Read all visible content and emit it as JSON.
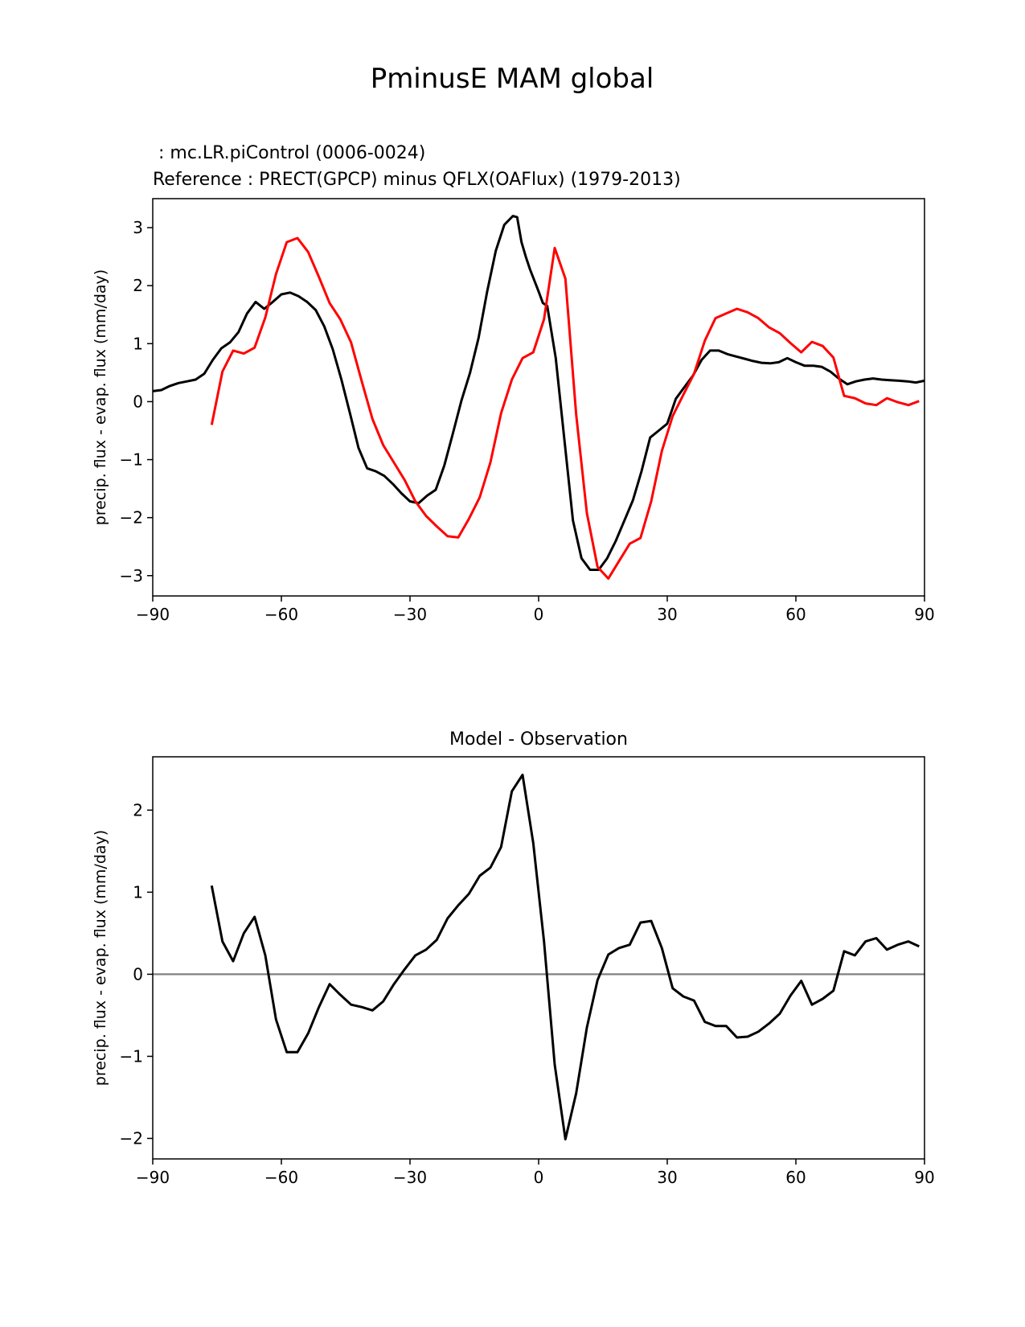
{
  "figure_title": "PminusE MAM global",
  "colors": {
    "model": "#000000",
    "reference": "#ff0000",
    "zero_line": "#808080"
  },
  "chart_data": [
    {
      "type": "line",
      "title_model": " : mc.LR.piControl (0006-0024)",
      "title_reference": "Reference : PRECT(GPCP) minus QFLX(OAFlux) (1979-2013)",
      "xlabel": "",
      "ylabel": "precip. flux - evap. flux (mm/day)",
      "xlim": [
        -90,
        90
      ],
      "ylim": [
        -3.35,
        3.5
      ],
      "xticks": [
        -90,
        -60,
        -30,
        0,
        30,
        60,
        90
      ],
      "xtick_labels": [
        "−90",
        "−60",
        "−30",
        "0",
        "30",
        "60",
        "90"
      ],
      "yticks": [
        -3,
        -2,
        -1,
        0,
        1,
        2,
        3
      ],
      "ytick_labels": [
        "−3",
        "−2",
        "−1",
        "0",
        "1",
        "2",
        "3"
      ],
      "series": [
        {
          "name": "mc.LR.piControl (0006-0024)",
          "color": "#000000",
          "x": [
            -90,
            -88,
            -86,
            -84,
            -82,
            -80,
            -78,
            -76,
            -74,
            -72,
            -70,
            -68,
            -66,
            -64,
            -62,
            -60,
            -58,
            -56,
            -54,
            -52,
            -50,
            -48,
            -46,
            -44,
            -42,
            -40,
            -38,
            -36,
            -34,
            -32,
            -30,
            -28,
            -26,
            -24,
            -22,
            -20,
            -18,
            -16,
            -14,
            -12,
            -10,
            -8,
            -6,
            -5,
            -4,
            -3,
            -2,
            0,
            1,
            2,
            4,
            6,
            8,
            10,
            12,
            14,
            16,
            18,
            20,
            22,
            24,
            26,
            28,
            30,
            32,
            34,
            36,
            38,
            40,
            42,
            44,
            46,
            48,
            50,
            52,
            54,
            56,
            58,
            60,
            62,
            64,
            66,
            68,
            70,
            72,
            74,
            76,
            78,
            80,
            82,
            84,
            86,
            88,
            90
          ],
          "values": [
            0.18,
            0.2,
            0.27,
            0.32,
            0.35,
            0.38,
            0.48,
            0.72,
            0.92,
            1.02,
            1.2,
            1.52,
            1.72,
            1.6,
            1.72,
            1.85,
            1.88,
            1.82,
            1.72,
            1.58,
            1.3,
            0.9,
            0.38,
            -0.2,
            -0.8,
            -1.15,
            -1.2,
            -1.28,
            -1.42,
            -1.58,
            -1.72,
            -1.75,
            -1.62,
            -1.52,
            -1.1,
            -0.55,
            0.02,
            0.5,
            1.1,
            1.9,
            2.6,
            3.05,
            3.2,
            3.18,
            2.75,
            2.5,
            2.28,
            1.9,
            1.7,
            1.65,
            0.75,
            -0.65,
            -2.05,
            -2.7,
            -2.9,
            -2.9,
            -2.7,
            -2.4,
            -2.05,
            -1.7,
            -1.2,
            -0.62,
            -0.5,
            -0.38,
            0.05,
            0.25,
            0.45,
            0.72,
            0.88,
            0.88,
            0.82,
            0.78,
            0.74,
            0.7,
            0.67,
            0.66,
            0.68,
            0.75,
            0.68,
            0.62,
            0.62,
            0.6,
            0.52,
            0.4,
            0.3,
            0.35,
            0.38,
            0.4,
            0.38,
            0.37,
            0.36,
            0.35,
            0.33,
            0.36
          ]
        },
        {
          "name": "Reference : PRECT(GPCP) minus QFLX(OAFlux) (1979-2013)",
          "color": "#ff0000",
          "x": [
            -76.25,
            -73.75,
            -71.25,
            -68.75,
            -66.25,
            -63.75,
            -61.25,
            -58.75,
            -56.25,
            -53.75,
            -51.25,
            -48.75,
            -46.25,
            -43.75,
            -41.25,
            -38.75,
            -36.25,
            -33.75,
            -31.25,
            -28.75,
            -26.25,
            -23.75,
            -21.25,
            -18.75,
            -16.25,
            -13.75,
            -11.25,
            -8.75,
            -6.25,
            -3.75,
            -1.25,
            1.25,
            3.75,
            6.25,
            8.75,
            11.25,
            13.75,
            16.25,
            18.75,
            21.25,
            23.75,
            26.25,
            28.75,
            31.25,
            33.75,
            36.25,
            38.75,
            41.25,
            43.75,
            46.25,
            48.75,
            51.25,
            53.75,
            56.25,
            58.75,
            61.25,
            63.75,
            66.25,
            68.75,
            71.25,
            73.75,
            76.25,
            78.75,
            81.25,
            83.75,
            86.25,
            88.75
          ],
          "values": [
            -0.4,
            0.52,
            0.88,
            0.83,
            0.93,
            1.45,
            2.2,
            2.75,
            2.82,
            2.58,
            2.15,
            1.7,
            1.42,
            1.02,
            0.35,
            -0.3,
            -0.75,
            -1.05,
            -1.35,
            -1.72,
            -1.97,
            -2.15,
            -2.32,
            -2.34,
            -2.02,
            -1.65,
            -1.05,
            -0.2,
            0.38,
            0.75,
            0.85,
            1.42,
            2.65,
            2.12,
            -0.22,
            -1.92,
            -2.85,
            -3.05,
            -2.75,
            -2.45,
            -2.35,
            -1.72,
            -0.85,
            -0.25,
            0.12,
            0.48,
            1.05,
            1.44,
            1.52,
            1.6,
            1.54,
            1.44,
            1.28,
            1.18,
            1.01,
            0.85,
            1.03,
            0.96,
            0.76,
            0.1,
            0.06,
            -0.03,
            -0.06,
            0.06,
            -0.01,
            -0.06,
            0.01
          ]
        }
      ]
    },
    {
      "type": "line",
      "title": "Model - Observation",
      "xlabel": "",
      "ylabel": "precip. flux - evap. flux (mm/day)",
      "xlim": [
        -90,
        90
      ],
      "ylim": [
        -2.25,
        2.65
      ],
      "xticks": [
        -90,
        -60,
        -30,
        0,
        30,
        60,
        90
      ],
      "xtick_labels": [
        "−90",
        "−60",
        "−30",
        "0",
        "30",
        "60",
        "90"
      ],
      "yticks": [
        -2,
        -1,
        0,
        1,
        2
      ],
      "ytick_labels": [
        "−2",
        "−1",
        "0",
        "1",
        "2"
      ],
      "reference_line": 0,
      "series": [
        {
          "name": "Model - Observation",
          "color": "#000000",
          "x": [
            -76.25,
            -73.75,
            -71.25,
            -68.75,
            -66.25,
            -63.75,
            -61.25,
            -58.75,
            -56.25,
            -53.75,
            -51.25,
            -48.75,
            -46.25,
            -43.75,
            -41.25,
            -38.75,
            -36.25,
            -33.75,
            -31.25,
            -28.75,
            -26.25,
            -23.75,
            -21.25,
            -18.75,
            -16.25,
            -13.75,
            -11.25,
            -8.75,
            -6.25,
            -3.75,
            -1.25,
            1.25,
            3.75,
            6.25,
            8.75,
            11.25,
            13.75,
            16.25,
            18.75,
            21.25,
            23.75,
            26.25,
            28.75,
            31.25,
            33.75,
            36.25,
            38.75,
            41.25,
            43.75,
            46.25,
            48.75,
            51.25,
            53.75,
            56.25,
            58.75,
            61.25,
            63.75,
            66.25,
            68.75,
            71.25,
            73.75,
            76.25,
            78.75,
            81.25,
            83.75,
            86.25,
            88.75
          ],
          "values": [
            1.08,
            0.4,
            0.16,
            0.5,
            0.7,
            0.23,
            -0.55,
            -0.95,
            -0.95,
            -0.72,
            -0.4,
            -0.12,
            -0.25,
            -0.37,
            -0.4,
            -0.44,
            -0.33,
            -0.12,
            0.06,
            0.23,
            0.3,
            0.42,
            0.68,
            0.84,
            0.98,
            1.2,
            1.3,
            1.55,
            2.23,
            2.43,
            1.6,
            0.4,
            -1.1,
            -2.01,
            -1.45,
            -0.65,
            -0.07,
            0.24,
            0.32,
            0.36,
            0.63,
            0.65,
            0.32,
            -0.17,
            -0.27,
            -0.32,
            -0.58,
            -0.63,
            -0.63,
            -0.77,
            -0.76,
            -0.7,
            -0.6,
            -0.48,
            -0.26,
            -0.08,
            -0.37,
            -0.3,
            -0.2,
            0.28,
            0.23,
            0.4,
            0.44,
            0.3,
            0.36,
            0.4,
            0.34
          ]
        }
      ]
    }
  ]
}
